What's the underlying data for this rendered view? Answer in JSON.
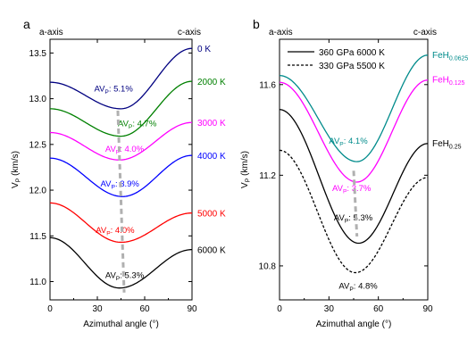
{
  "chart_data": [
    {
      "type": "line",
      "panel_letter": "a",
      "top_left_label": "a-axis",
      "top_right_label": "c-axis",
      "xlabel": "Azimuthal angle (°)",
      "ylabel": "V_P (km/s)",
      "ylabel_main": "V",
      "ylabel_sub": "P",
      "ylabel_rest": " (km/s)",
      "xlim": [
        0,
        90
      ],
      "ylim": [
        10.8,
        13.65
      ],
      "xticks": [
        0,
        30,
        60,
        90
      ],
      "yticks": [
        "11.0",
        "11.5",
        "12.0",
        "12.5",
        "13.0",
        "13.5"
      ],
      "series": [
        {
          "name": "0 K",
          "color": "#000080",
          "a0": 13.18,
          "min": 12.89,
          "a90": 13.55,
          "amin": 45,
          "annotation": "AVP: 5.1%",
          "ann_main": "AV",
          "ann_sub": "P",
          "ann_rest": ": 5.1%",
          "ann_x": 28,
          "ann_y": 13.08
        },
        {
          "name": "2000 K",
          "color": "#008000",
          "a0": 12.89,
          "min": 12.59,
          "a90": 13.19,
          "amin": 45,
          "annotation": "AVP: 4.7%",
          "ann_main": "AV",
          "ann_sub": "P",
          "ann_rest": ": 4.7%",
          "ann_x": 43,
          "ann_y": 12.7
        },
        {
          "name": "3000 K",
          "color": "#ff00ff",
          "a0": 12.63,
          "min": 12.33,
          "a90": 12.74,
          "amin": 44,
          "annotation": "AVP: 4.0%",
          "ann_main": "AV",
          "ann_sub": "P",
          "ann_rest": ": 4.0%",
          "ann_x": 35,
          "ann_y": 12.42
        },
        {
          "name": "4000 K",
          "color": "#0000ff",
          "a0": 12.35,
          "min": 11.93,
          "a90": 12.38,
          "amin": 46,
          "annotation": "AVP: 3.9%",
          "ann_main": "AV",
          "ann_sub": "P",
          "ann_rest": ": 3.9%",
          "ann_x": 32,
          "ann_y": 12.04
        },
        {
          "name": "5000 K",
          "color": "#ff0000",
          "a0": 11.86,
          "min": 11.43,
          "a90": 11.75,
          "amin": 45,
          "annotation": "AVP: 4.0%",
          "ann_main": "AV",
          "ann_sub": "P",
          "ann_rest": ": 4.0%",
          "ann_x": 29,
          "ann_y": 11.53
        },
        {
          "name": "6000 K",
          "color": "#000000",
          "a0": 11.48,
          "min": 10.93,
          "a90": 11.35,
          "amin": 44,
          "annotation": "AVP: 5.3%",
          "ann_main": "AV",
          "ann_sub": "P",
          "ann_rest": ": 5.3%",
          "ann_x": 35,
          "ann_y": 11.04
        }
      ],
      "trend_line": {
        "color": "#b0b0b0",
        "points": [
          [
            43,
            12.87
          ],
          [
            47,
            10.88
          ]
        ]
      }
    },
    {
      "type": "line",
      "panel_letter": "b",
      "top_left_label": "a-axis",
      "top_right_label": "c-axis",
      "xlabel": "Azimuthal angle (°)",
      "ylabel": "V_P (km/s)",
      "ylabel_main": "V",
      "ylabel_sub": "P",
      "ylabel_rest": " (km/s)",
      "xlim": [
        0,
        90
      ],
      "ylim": [
        10.65,
        11.8
      ],
      "xticks": [
        0,
        30,
        60,
        90
      ],
      "yticks": [
        "10.8",
        "11.2",
        "11.6"
      ],
      "legend": [
        {
          "label": "360 GPa 6000 K",
          "style": "solid"
        },
        {
          "label": "330 GPa 5500 K",
          "style": "dashed"
        }
      ],
      "series": [
        {
          "name": "FeH0.0625",
          "name_main": "FeH",
          "name_sub": "0.0625",
          "color": "#008b8b",
          "style": "solid",
          "a0": 11.64,
          "min": 11.26,
          "a90": 11.73,
          "amin": 47,
          "annotation": "AVP: 4.1%",
          "ann_main": "AV",
          "ann_sub": "P",
          "ann_rest": ": 4.1%",
          "ann_x": 30,
          "ann_y": 11.34,
          "ann_color": "#008b8b"
        },
        {
          "name": "FeH0.125",
          "name_main": "FeH",
          "name_sub": "0.125",
          "color": "#ff00ff",
          "style": "solid",
          "a0": 11.61,
          "min": 11.17,
          "a90": 11.62,
          "amin": 47,
          "annotation": "AVP: 3.7%",
          "ann_main": "AV",
          "ann_sub": "P",
          "ann_rest": ": 3.7%",
          "ann_x": 32,
          "ann_y": 11.13,
          "ann_color": "#ff00ff"
        },
        {
          "name": "FeH0.25",
          "name_main": "FeH",
          "name_sub": "0.25",
          "color": "#000000",
          "style": "solid",
          "a0": 11.49,
          "min": 10.9,
          "a90": 11.34,
          "amin": 48,
          "annotation": "AVP: 5.3%",
          "ann_main": "AV",
          "ann_sub": "P",
          "ann_rest": ": 5.3%",
          "ann_x": 33,
          "ann_y": 11.0,
          "ann_color": "#000000"
        },
        {
          "name": "",
          "color": "#000000",
          "style": "dashed",
          "a0": 11.31,
          "min": 10.77,
          "a90": 11.19,
          "amin": 46,
          "annotation": "AVP: 4.8%",
          "ann_main": "AV",
          "ann_sub": "P",
          "ann_rest": ": 4.8%",
          "ann_x": 36,
          "ann_y": 10.7,
          "ann_color": "#000000"
        }
      ],
      "trend_line": {
        "color": "#b0b0b0",
        "points": [
          [
            45,
            11.22
          ],
          [
            47,
            10.93
          ]
        ]
      }
    }
  ]
}
